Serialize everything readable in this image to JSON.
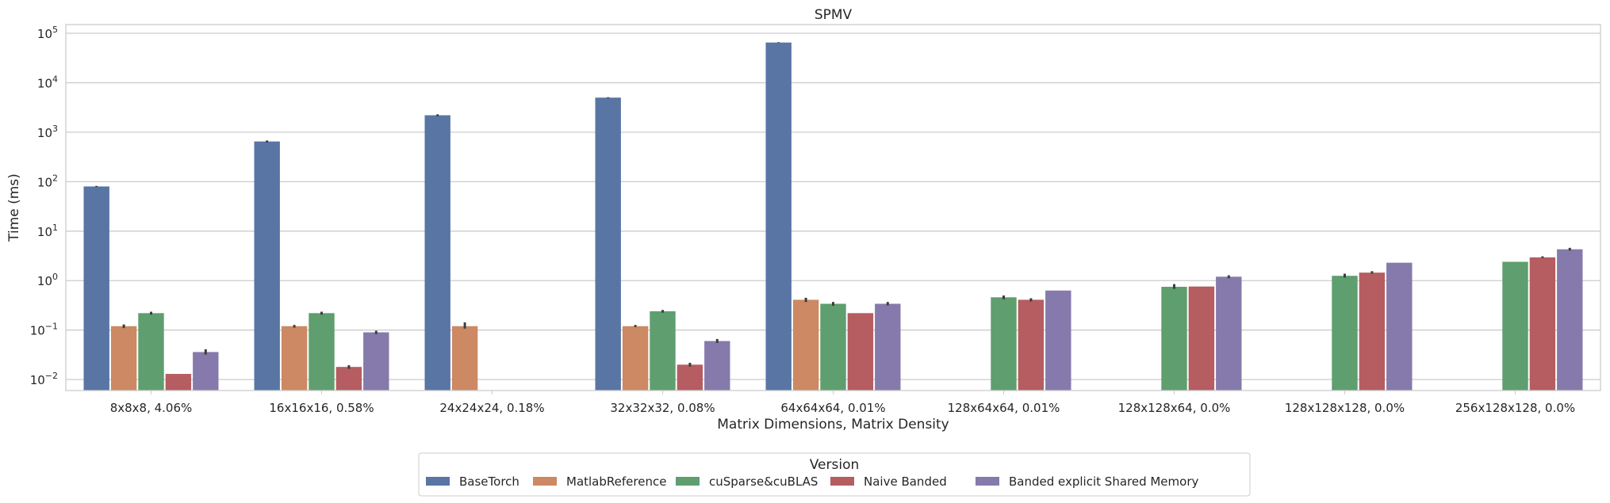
{
  "chart_data": {
    "type": "bar",
    "title": "SPMV",
    "xlabel": "Matrix Dimensions, Matrix Density",
    "ylabel": "Time (ms)",
    "yscale": "log",
    "ylim": [
      0.006,
      150000
    ],
    "yticks": [
      {
        "value": 0.01,
        "base": "10",
        "exp": "−2"
      },
      {
        "value": 0.1,
        "base": "10",
        "exp": "−1"
      },
      {
        "value": 1,
        "base": "10",
        "exp": "0"
      },
      {
        "value": 10,
        "base": "10",
        "exp": "1"
      },
      {
        "value": 100,
        "base": "10",
        "exp": "2"
      },
      {
        "value": 1000,
        "base": "10",
        "exp": "3"
      },
      {
        "value": 10000,
        "base": "10",
        "exp": "4"
      },
      {
        "value": 100000,
        "base": "10",
        "exp": "5"
      }
    ],
    "grid": true,
    "legend": {
      "title": "Version",
      "placement": "bottom-center"
    },
    "categories": [
      "8x8x8, 4.06%",
      "16x16x16, 0.58%",
      "24x24x24, 0.18%",
      "32x32x32, 0.08%",
      "64x64x64, 0.01%",
      "128x64x64, 0.01%",
      "128x128x64, 0.0%",
      "128x128x128, 0.0%",
      "256x128x128, 0.0%"
    ],
    "series": [
      {
        "name": "BaseTorch",
        "color": "#5875a4",
        "values": [
          80,
          650,
          2200,
          5000,
          65000,
          null,
          null,
          null,
          null
        ],
        "errors": [
          [
            78,
            82
          ],
          [
            620,
            680
          ],
          [
            2100,
            2300
          ],
          [
            4900,
            5100
          ],
          [
            64000,
            66000
          ],
          null,
          null,
          null,
          null
        ]
      },
      {
        "name": "MatlabReference",
        "color": "#cc8963",
        "values": [
          0.12,
          0.12,
          0.12,
          0.12,
          0.41,
          null,
          null,
          null,
          null
        ],
        "errors": [
          [
            0.11,
            0.13
          ],
          [
            0.112,
            0.127
          ],
          [
            0.107,
            0.143
          ],
          [
            0.115,
            0.127
          ],
          [
            0.37,
            0.45
          ],
          null,
          null,
          null,
          null
        ]
      },
      {
        "name": "cuSparse&cuBLAS",
        "color": "#5f9e6e",
        "values": [
          0.22,
          0.22,
          null,
          0.24,
          0.34,
          0.46,
          0.75,
          1.25,
          2.4
        ],
        "errors": [
          [
            0.205,
            0.235
          ],
          [
            0.205,
            0.235
          ],
          null,
          [
            0.225,
            0.255
          ],
          [
            0.31,
            0.37
          ],
          [
            0.42,
            0.5
          ],
          [
            0.68,
            0.85
          ],
          [
            1.15,
            1.38
          ],
          null
        ]
      },
      {
        "name": "Naive Banded",
        "color": "#b55d60",
        "values": [
          0.013,
          0.018,
          null,
          0.02,
          0.22,
          0.41,
          0.76,
          1.45,
          2.95
        ],
        "errors": [
          null,
          [
            0.0165,
            0.0195
          ],
          null,
          [
            0.0183,
            0.0218
          ],
          null,
          [
            0.38,
            0.44
          ],
          null,
          [
            1.38,
            1.55
          ],
          [
            2.85,
            3.1
          ]
        ]
      },
      {
        "name": "Banded explicit Shared Memory",
        "color": "#857aab",
        "values": [
          0.036,
          0.09,
          null,
          0.06,
          0.34,
          0.63,
          1.2,
          2.3,
          4.3
        ],
        "errors": [
          [
            0.032,
            0.041
          ],
          [
            0.083,
            0.097
          ],
          null,
          [
            0.055,
            0.066
          ],
          [
            0.315,
            0.37
          ],
          null,
          [
            1.12,
            1.28
          ],
          null,
          [
            4.05,
            4.6
          ]
        ]
      }
    ]
  }
}
